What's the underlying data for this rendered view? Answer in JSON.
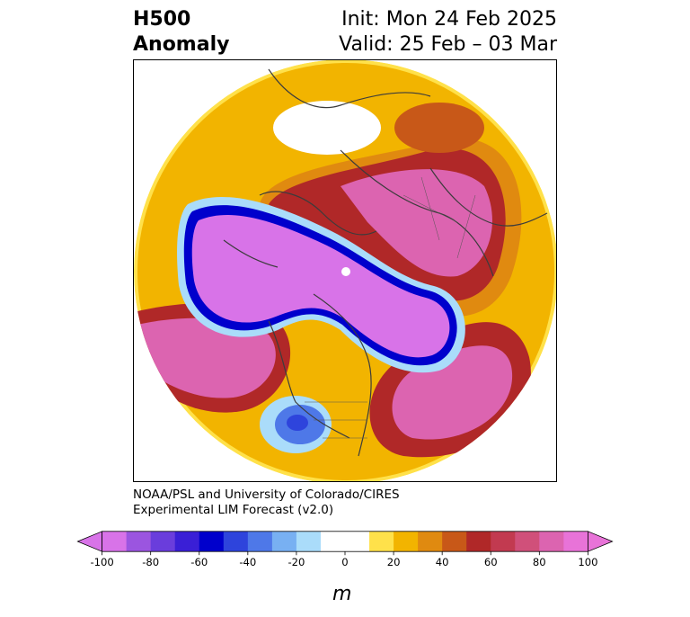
{
  "header": {
    "title_line1": "H500",
    "title_line2": "Anomaly",
    "init": "Init: Mon 24 Feb 2025",
    "valid": "Valid: 25 Feb – 03 Mar"
  },
  "credit": {
    "line1": "NOAA/PSL and University of Colorado/CIRES",
    "line2": "Experimental LIM Forecast (v2.0)"
  },
  "colorbar": {
    "unit": "m",
    "ticks": [
      "-100",
      "-80",
      "-60",
      "-40",
      "-20",
      "0",
      "20",
      "40",
      "60",
      "80",
      "100"
    ],
    "colors": [
      "#d873e8",
      "#9b55e0",
      "#6a3ddc",
      "#3a1fd6",
      "#0000cc",
      "#2e44dc",
      "#4e78e8",
      "#78b0f2",
      "#aadcfa",
      "#ffffff",
      "#ffffff",
      "#ffe14a",
      "#f2b400",
      "#e08a10",
      "#c85818",
      "#b02828",
      "#c23a50",
      "#d0507a",
      "#dc64b0",
      "#e873d8"
    ],
    "under_color": "#d873e8",
    "over_color": "#e873d8"
  },
  "map": {
    "projection": "north-polar-stereographic",
    "palette": {
      "neg_deep": "#d873e8",
      "neg_mid": "#0000cc",
      "neg_light": "#aadcfa",
      "pos_light": "#ffe14a",
      "pos_mid": "#f2b400",
      "pos_orange": "#e08a10",
      "pos_red": "#b02828",
      "pos_deep": "#dc64b0",
      "coast": "#3c3c3c"
    }
  }
}
